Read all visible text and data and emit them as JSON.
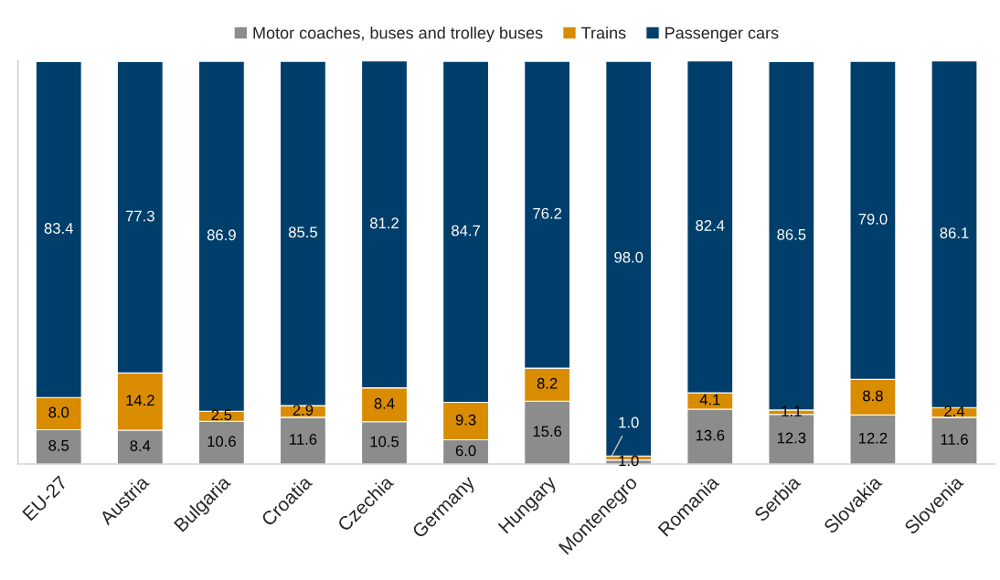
{
  "chart_data": {
    "type": "bar",
    "stacked": true,
    "legend": "top",
    "grid": false,
    "categories": [
      "EU-27",
      "Austria",
      "Bulgaria",
      "Croatia",
      "Czechia",
      "Germany",
      "Hungary",
      "Montenegro",
      "Romania",
      "Serbia",
      "Slovakia",
      "Slovenia"
    ],
    "series": [
      {
        "name": "Motor coaches, buses and trolley buses",
        "color": "#8c8c8c",
        "values": [
          8.5,
          8.4,
          10.6,
          11.6,
          10.5,
          6,
          15.6,
          1,
          13.6,
          12.3,
          12.2,
          11.6
        ],
        "value_labels": [
          "8.5",
          "8.4",
          "10.6",
          "11.6",
          "10.5",
          "6.0",
          "15.6",
          "1.0",
          "13.6",
          "12.3",
          "12.2",
          "11.6"
        ]
      },
      {
        "name": "Trains",
        "color": "#d98c00",
        "values": [
          8,
          14.2,
          2.5,
          2.9,
          8.4,
          9.3,
          8.2,
          1,
          4.1,
          1.1,
          8.8,
          2.4
        ],
        "value_labels": [
          "8.0",
          "14.2",
          "2.5",
          "2.9",
          "8.4",
          "9.3",
          "8.2",
          "1.0",
          "4.1",
          "1.1",
          "8.8",
          "2.4"
        ]
      },
      {
        "name": "Passenger cars",
        "color": "#003f6b",
        "values": [
          83.4,
          77.3,
          86.9,
          85.5,
          81.2,
          84.7,
          76.2,
          98,
          82.4,
          86.5,
          79,
          86.1
        ],
        "value_labels": [
          "83.4",
          "77.3",
          "86.9",
          "85.5",
          "81.2",
          "84.7",
          "76.2",
          "98.0",
          "82.4",
          "86.5",
          "79.0",
          "86.1"
        ]
      }
    ]
  }
}
